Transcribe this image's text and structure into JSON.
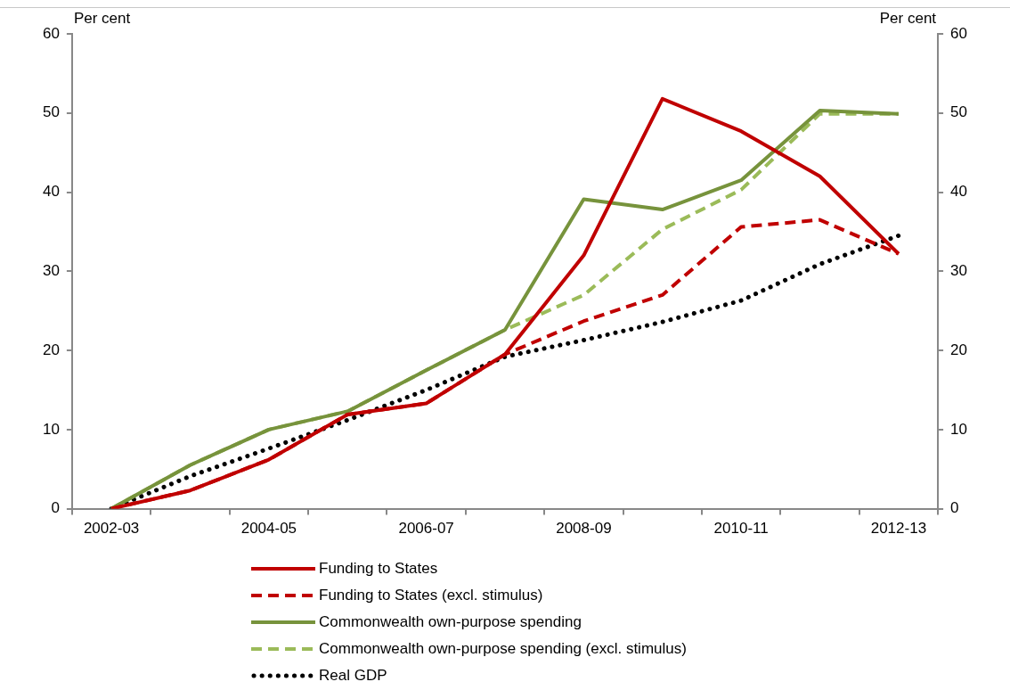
{
  "chart_data": {
    "type": "line",
    "ylabel": "Per cent",
    "y2label": "Per cent",
    "categories": [
      "2002-03",
      null,
      "2004-05",
      null,
      "2006-07",
      null,
      "2008-09",
      null,
      "2010-11",
      null,
      "2012-13"
    ],
    "series": [
      {
        "name": "Funding to States",
        "color": "#c00000",
        "line_style": "solid",
        "values": [
          0,
          2.3,
          6.2,
          11.9,
          13.3,
          19.5,
          32,
          51.8,
          47.7,
          42,
          32.2
        ]
      },
      {
        "name": "Funding to States (excl. stimulus)",
        "color": "#c00000",
        "line_style": "dashed",
        "values": [
          0,
          2.3,
          6.2,
          11.9,
          13.3,
          19.5,
          23.7,
          27,
          35.6,
          36.5,
          32.2
        ]
      },
      {
        "name": "Commonwealth own-purpose spending",
        "color": "#77933c",
        "line_style": "solid",
        "values": [
          0,
          5.5,
          10,
          12.3,
          17.5,
          22.6,
          39.1,
          37.8,
          41.5,
          50.3,
          49.9
        ]
      },
      {
        "name": "Commonwealth own-purpose spending (excl. stimulus)",
        "color": "#9bbb59",
        "line_style": "dashed",
        "values": [
          0,
          5.5,
          10,
          12.3,
          17.5,
          22.6,
          27,
          35.3,
          40.3,
          49.9,
          49.9
        ]
      },
      {
        "name": "Real GDP",
        "color": "#000000",
        "line_style": "dotted",
        "values": [
          0,
          4.1,
          7.6,
          11.2,
          15,
          19.2,
          21.3,
          23.6,
          26.3,
          30.9,
          34.5
        ]
      }
    ],
    "ylim": [
      0,
      60
    ],
    "yticks": [
      0,
      10,
      20,
      30,
      40,
      50,
      60
    ],
    "y2lim": [
      0,
      60
    ],
    "y2ticks": [
      0,
      10,
      20,
      30,
      40,
      50,
      60
    ],
    "grid": false,
    "legend": "bottom",
    "marker": "none"
  }
}
